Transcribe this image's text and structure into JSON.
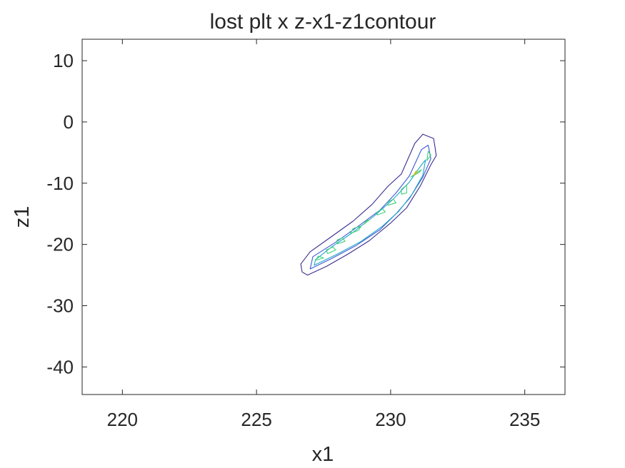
{
  "chart_data": {
    "type": "contour",
    "title": "lost plt x z-x1-z1contour",
    "xlabel": "x1",
    "ylabel": "z1",
    "xlim": [
      218.5,
      236.5
    ],
    "ylim": [
      -44.5,
      13.5
    ],
    "xticks": [
      220,
      225,
      230,
      235
    ],
    "yticks": [
      10,
      0,
      -10,
      -20,
      -30,
      -40
    ],
    "xtick_labels": [
      "220",
      "225",
      "230",
      "235"
    ],
    "ytick_labels": [
      "10",
      "0",
      "-10",
      "-20",
      "-30",
      "-40"
    ],
    "grid": false,
    "colors": {
      "axis": "#262626",
      "level1": "#3b2d8f",
      "level2": "#3d5ad6",
      "level3": "#21a8c8",
      "level4": "#3fd07a",
      "level5": "#d8c21b"
    },
    "series": [
      {
        "level": 1,
        "color_key": "level1",
        "closed": true,
        "x": [
          226.7,
          226.9,
          227.6,
          228.4,
          229.2,
          230.0,
          230.6,
          231.1,
          231.5,
          231.7,
          231.65,
          231.6,
          231.2,
          230.9,
          230.4,
          229.9,
          229.3,
          228.6,
          227.8,
          227.0,
          226.65
        ],
        "y": [
          -24.5,
          -25.0,
          -23.6,
          -21.6,
          -19.4,
          -16.5,
          -14.0,
          -10.5,
          -7.0,
          -5.5,
          -4.0,
          -2.7,
          -2.0,
          -3.5,
          -8.5,
          -10.5,
          -13.5,
          -16.2,
          -18.7,
          -21.2,
          -23.2
        ]
      },
      {
        "level": 2,
        "color_key": "level2",
        "closed": true,
        "x": [
          227.0,
          227.8,
          228.7,
          229.6,
          230.2,
          230.7,
          231.2,
          231.5,
          231.4,
          231.15,
          230.7,
          230.2,
          229.6,
          228.8,
          228.0,
          227.1
        ],
        "y": [
          -24.0,
          -22.3,
          -20.2,
          -17.6,
          -15.0,
          -12.5,
          -9.0,
          -6.0,
          -3.8,
          -4.5,
          -8.8,
          -11.6,
          -14.4,
          -17.0,
          -19.5,
          -22.0
        ]
      },
      {
        "level": 3,
        "color_key": "level3",
        "closed": true,
        "x": [
          227.15,
          228.0,
          228.9,
          229.7,
          230.3,
          230.8,
          231.2,
          231.3,
          231.1,
          230.7,
          230.1,
          229.4,
          228.6,
          227.8,
          227.2
        ],
        "y": [
          -23.4,
          -21.6,
          -19.5,
          -17.0,
          -14.6,
          -11.8,
          -8.7,
          -6.2,
          -7.3,
          -9.8,
          -12.6,
          -15.3,
          -18.0,
          -20.4,
          -22.5
        ]
      },
      {
        "level": 4,
        "color_key": "level4",
        "closed": true,
        "x": [
          227.2,
          227.5,
          227.3
        ],
        "y": [
          -22.6,
          -22.2,
          -21.9
        ]
      },
      {
        "level": 4,
        "color_key": "level4",
        "closed": true,
        "x": [
          227.65,
          227.95,
          227.85,
          227.6
        ],
        "y": [
          -21.5,
          -20.9,
          -20.4,
          -20.9
        ]
      },
      {
        "level": 4,
        "color_key": "level4",
        "closed": true,
        "x": [
          228.0,
          228.3,
          228.2,
          228.0
        ],
        "y": [
          -19.9,
          -19.5,
          -18.9,
          -19.3
        ]
      },
      {
        "level": 4,
        "color_key": "level4",
        "closed": true,
        "x": [
          228.5,
          228.8,
          228.9,
          228.6
        ],
        "y": [
          -18.2,
          -17.7,
          -17.0,
          -17.4
        ]
      },
      {
        "level": 4,
        "color_key": "level4",
        "closed": true,
        "x": [
          229.0,
          229.2,
          229.1
        ],
        "y": [
          -16.7,
          -16.0,
          -16.1
        ]
      },
      {
        "level": 4,
        "color_key": "level4",
        "closed": true,
        "x": [
          229.5,
          229.8,
          229.7,
          229.5
        ],
        "y": [
          -15.2,
          -14.7,
          -14.2,
          -14.7
        ]
      },
      {
        "level": 4,
        "color_key": "level4",
        "closed": true,
        "x": [
          229.9,
          230.2,
          230.1,
          229.9
        ],
        "y": [
          -13.6,
          -13.2,
          -12.6,
          -13.1
        ]
      },
      {
        "level": 4,
        "color_key": "level4",
        "closed": true,
        "x": [
          230.4,
          230.6,
          230.6,
          230.4
        ],
        "y": [
          -11.8,
          -11.6,
          -10.3,
          -11.0
        ]
      },
      {
        "level": 4,
        "color_key": "level4",
        "closed": true,
        "x": [
          230.75,
          231.05,
          231.15,
          230.9
        ],
        "y": [
          -9.0,
          -8.3,
          -7.8,
          -8.5
        ]
      },
      {
        "level": 4,
        "color_key": "level4",
        "closed": true,
        "x": [
          231.35,
          231.5,
          231.4
        ],
        "y": [
          -6.3,
          -5.4,
          -4.8
        ]
      },
      {
        "level": 5,
        "color_key": "level5",
        "closed": true,
        "x": [
          230.85,
          231.0,
          230.95
        ],
        "y": [
          -8.7,
          -8.2,
          -8.0
        ]
      }
    ]
  }
}
